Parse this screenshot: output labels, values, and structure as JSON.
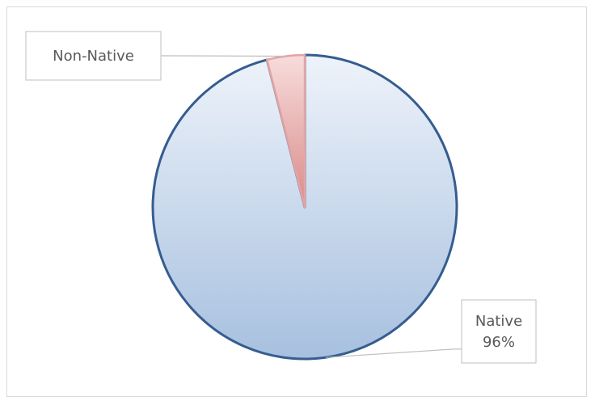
{
  "chart_data": {
    "type": "pie",
    "title": "",
    "slices": [
      {
        "label": "Native",
        "value": 96,
        "value_label": "96%",
        "color": "#a7c0df",
        "border": "#355d8f"
      },
      {
        "label": "Non-Native",
        "value": 4,
        "value_label": "",
        "color": "#d98b89",
        "border": "#e4a3a2"
      }
    ],
    "legend": "none",
    "data_label_border": "#bfbfbf",
    "leader_line_color": "#bfbfbf"
  }
}
